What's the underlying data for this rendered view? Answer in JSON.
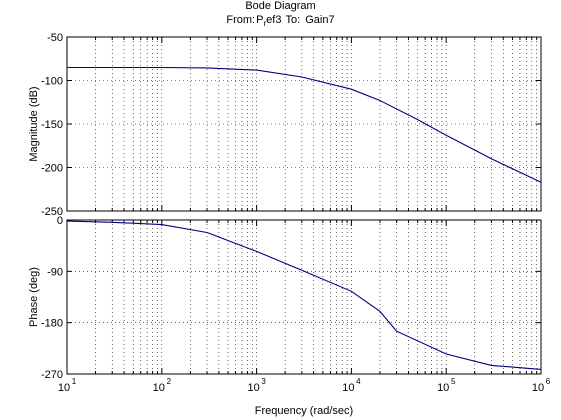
{
  "figure": {
    "title": "Bode Diagram",
    "subtitle_from_label": "From:",
    "subtitle_from_value": "P",
    "subtitle_from_sub": "r",
    "subtitle_from_rest": "ef3",
    "subtitle_to_label": "To:",
    "subtitle_to_value": "Gain7"
  },
  "chart_data": [
    {
      "type": "line",
      "panel": "magnitude",
      "ylabel": "Magnitude (dB)",
      "xlabel": "",
      "xscale": "log",
      "xlim": [
        10,
        1000000
      ],
      "ylim": [
        -250,
        -50
      ],
      "yticks": [
        -50,
        -100,
        -150,
        -200,
        -250
      ],
      "grid": true,
      "color": "#000080",
      "x": [
        10,
        100,
        300,
        1000,
        3000,
        10000,
        20000,
        50000,
        100000,
        300000,
        1000000
      ],
      "y": [
        -85,
        -85,
        -85.5,
        -88,
        -96,
        -110,
        -123,
        -145,
        -163,
        -190,
        -217
      ]
    },
    {
      "type": "line",
      "panel": "phase",
      "ylabel": "Phase (deg)",
      "xlabel": "Frequency  (rad/sec)",
      "xscale": "log",
      "xlim": [
        10,
        1000000
      ],
      "ylim": [
        -270,
        0
      ],
      "yticks": [
        0,
        -90,
        -180,
        -270
      ],
      "xticks": [
        10,
        100,
        1000,
        10000,
        100000,
        1000000
      ],
      "xtick_labels": [
        "10",
        "10",
        "10",
        "10",
        "10",
        "10"
      ],
      "xtick_exponents": [
        "1",
        "2",
        "3",
        "4",
        "5",
        "6"
      ],
      "grid": true,
      "color": "#000080",
      "x": [
        10,
        30,
        100,
        300,
        1000,
        3000,
        10000,
        20000,
        30000,
        100000,
        300000,
        1000000
      ],
      "y": [
        -2,
        -4,
        -8,
        -22,
        -55,
        -88,
        -125,
        -160,
        -195,
        -235,
        -255,
        -262
      ]
    }
  ]
}
